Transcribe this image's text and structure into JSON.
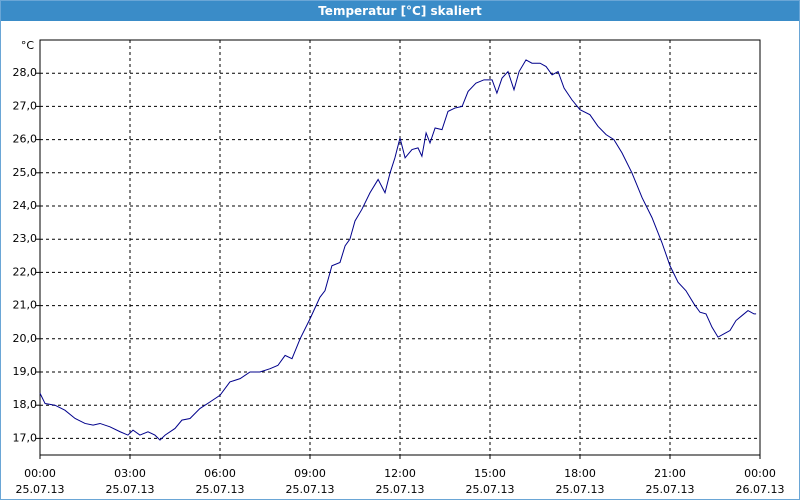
{
  "chart_data": {
    "type": "line",
    "title": "Temperatur [°C] skaliert",
    "y_label": "°C",
    "color": "#00008b",
    "grid": true,
    "xlim": [
      0,
      24
    ],
    "ylim": [
      16.5,
      29
    ],
    "xticks": [
      {
        "value": 0,
        "label": "00:00",
        "date": "25.07.13"
      },
      {
        "value": 3,
        "label": "03:00",
        "date": "25.07.13"
      },
      {
        "value": 6,
        "label": "06:00",
        "date": "25.07.13"
      },
      {
        "value": 9,
        "label": "09:00",
        "date": "25.07.13"
      },
      {
        "value": 12,
        "label": "12:00",
        "date": "25.07.13"
      },
      {
        "value": 15,
        "label": "15:00",
        "date": "25.07.13"
      },
      {
        "value": 18,
        "label": "18:00",
        "date": "25.07.13"
      },
      {
        "value": 21,
        "label": "21:00",
        "date": "25.07.13"
      },
      {
        "value": 24,
        "label": "00:00",
        "date": "26.07.13"
      }
    ],
    "yticks": [
      {
        "value": 17,
        "label": "17,0"
      },
      {
        "value": 18,
        "label": "18,0"
      },
      {
        "value": 19,
        "label": "19,0"
      },
      {
        "value": 20,
        "label": "20,0"
      },
      {
        "value": 21,
        "label": "21,0"
      },
      {
        "value": 22,
        "label": "22,0"
      },
      {
        "value": 23,
        "label": "23,0"
      },
      {
        "value": 24,
        "label": "24,0"
      },
      {
        "value": 25,
        "label": "25,0"
      },
      {
        "value": 26,
        "label": "26,0"
      },
      {
        "value": 27,
        "label": "27,0"
      },
      {
        "value": 28,
        "label": "28,0"
      }
    ],
    "x": [
      0,
      0.17,
      0.5,
      0.83,
      1.17,
      1.5,
      1.77,
      2,
      2.33,
      2.67,
      2.93,
      3.1,
      3.33,
      3.6,
      3.83,
      4,
      4.17,
      4.5,
      4.73,
      5,
      5.33,
      5.67,
      6,
      6.33,
      6.67,
      7,
      7.33,
      7.67,
      7.93,
      8.17,
      8.4,
      8.67,
      9,
      9.33,
      9.5,
      9.73,
      10,
      10.17,
      10.33,
      10.5,
      10.73,
      11,
      11.27,
      11.5,
      11.67,
      11.83,
      12,
      12.17,
      12.4,
      12.6,
      12.73,
      12.87,
      13,
      13.17,
      13.4,
      13.6,
      13.83,
      14.07,
      14.27,
      14.53,
      14.8,
      15.07,
      15.23,
      15.4,
      15.6,
      15.8,
      15.97,
      16.2,
      16.4,
      16.67,
      16.87,
      17.07,
      17.27,
      17.47,
      17.73,
      18,
      18.33,
      18.6,
      18.87,
      19.13,
      19.4,
      19.73,
      20.07,
      20.4,
      20.73,
      21,
      21.27,
      21.53,
      21.8,
      22,
      22.2,
      22.4,
      22.6,
      22.8,
      23,
      23.2,
      23.4,
      23.6,
      23.8,
      23.87
    ],
    "values": [
      18.36,
      18.05,
      18.0,
      17.85,
      17.6,
      17.45,
      17.4,
      17.45,
      17.35,
      17.2,
      17.1,
      17.25,
      17.1,
      17.2,
      17.1,
      16.95,
      17.1,
      17.3,
      17.55,
      17.6,
      17.9,
      18.1,
      18.3,
      18.7,
      18.8,
      19.0,
      19.0,
      19.1,
      19.2,
      19.5,
      19.4,
      20.0,
      20.6,
      21.25,
      21.45,
      22.2,
      22.3,
      22.8,
      23.0,
      23.55,
      23.9,
      24.4,
      24.8,
      24.4,
      25.0,
      25.45,
      26.05,
      25.45,
      25.7,
      25.75,
      25.5,
      26.2,
      25.9,
      26.35,
      26.3,
      26.85,
      26.95,
      27.0,
      27.45,
      27.7,
      27.8,
      27.8,
      27.4,
      27.85,
      28.05,
      27.5,
      28.05,
      28.4,
      28.3,
      28.3,
      28.2,
      27.95,
      28.05,
      27.55,
      27.2,
      26.9,
      26.75,
      26.4,
      26.15,
      26.0,
      25.6,
      25.0,
      24.25,
      23.65,
      22.9,
      22.2,
      21.7,
      21.45,
      21.05,
      20.8,
      20.75,
      20.35,
      20.05,
      20.15,
      20.25,
      20.55,
      20.7,
      20.85,
      20.75,
      20.75
    ]
  }
}
